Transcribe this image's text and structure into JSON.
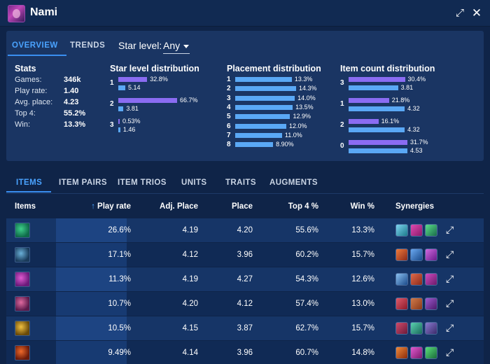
{
  "header": {
    "title": "Nami",
    "expand_icon": "expand-icon",
    "close_icon": "close-icon"
  },
  "tabs": {
    "overview": "OVERVIEW",
    "trends": "TRENDS"
  },
  "star_filter": {
    "label": "Star level:",
    "value": "Any"
  },
  "stats": {
    "title": "Stats",
    "rows": [
      {
        "label": "Games:",
        "value": "346k"
      },
      {
        "label": "Play rate:",
        "value": "1.40"
      },
      {
        "label": "Avg. place:",
        "value": "4.23"
      },
      {
        "label": "Top 4:",
        "value": "55.2%"
      },
      {
        "label": "Win:",
        "value": "13.3%"
      }
    ]
  },
  "star_dist": {
    "title": "Star level distribution",
    "rows": [
      {
        "label": "1",
        "purple": 32.8,
        "purple_text": "32.8%",
        "blue": 5.14,
        "blue_text": "5.14"
      },
      {
        "label": "2",
        "purple": 66.7,
        "purple_text": "66.7%",
        "blue": 3.81,
        "blue_text": "3.81"
      },
      {
        "label": "3",
        "purple": 0.53,
        "purple_text": "0.53%",
        "blue": 1.46,
        "blue_text": "1.46"
      }
    ]
  },
  "placement_dist": {
    "title": "Placement distribution",
    "rows": [
      {
        "label": "1",
        "value": 13.3,
        "text": "13.3%"
      },
      {
        "label": "2",
        "value": 14.3,
        "text": "14.3%"
      },
      {
        "label": "3",
        "value": 14.0,
        "text": "14.0%"
      },
      {
        "label": "4",
        "value": 13.5,
        "text": "13.5%"
      },
      {
        "label": "5",
        "value": 12.9,
        "text": "12.9%"
      },
      {
        "label": "6",
        "value": 12.0,
        "text": "12.0%"
      },
      {
        "label": "7",
        "value": 11.0,
        "text": "11.0%"
      },
      {
        "label": "8",
        "value": 8.9,
        "text": "8.90%"
      }
    ]
  },
  "item_count_dist": {
    "title": "Item count distribution",
    "rows": [
      {
        "label": "3",
        "purple": 30.4,
        "purple_text": "30.4%",
        "blue": 3.81,
        "blue_text": "3.81"
      },
      {
        "label": "1",
        "purple": 21.8,
        "purple_text": "21.8%",
        "blue": 4.32,
        "blue_text": "4.32"
      },
      {
        "label": "2",
        "purple": 16.1,
        "purple_text": "16.1%",
        "blue": 4.32,
        "blue_text": "4.32"
      },
      {
        "label": "0",
        "purple": 31.7,
        "purple_text": "31.7%",
        "blue": 4.53,
        "blue_text": "4.53"
      }
    ]
  },
  "subtabs": [
    "ITEMS",
    "ITEM PAIRS",
    "ITEM TRIOS",
    "UNITS",
    "TRAITS",
    "AUGMENTS"
  ],
  "table": {
    "columns": {
      "items": "Items",
      "play_rate": "Play rate",
      "adj_place": "Adj. Place",
      "place": "Place",
      "top4": "Top 4 %",
      "win": "Win %",
      "synergies": "Synergies"
    },
    "rows": [
      {
        "item_icon": "green-blade-item-icon",
        "item_colors": [
          "#0f6a4a",
          "#3ed08a"
        ],
        "play_rate": "26.6%",
        "adj_place": "4.19",
        "place": "4.20",
        "top4": "55.6%",
        "win": "13.3%",
        "synergies": [
          [
            "#1a7a8a",
            "#7fd4f0"
          ],
          [
            "#8a1a6a",
            "#e04ab0"
          ],
          [
            "#1a6a4a",
            "#5ae08a"
          ]
        ]
      },
      {
        "item_icon": "blue-sword-item-icon",
        "item_colors": [
          "#1a3a5a",
          "#6ab0d8"
        ],
        "play_rate": "17.1%",
        "adj_place": "4.12",
        "place": "3.96",
        "top4": "60.2%",
        "win": "15.7%",
        "synergies": [
          [
            "#8a2a1a",
            "#f07a3a"
          ],
          [
            "#1a4a8a",
            "#6aa8f0"
          ],
          [
            "#6a1a8a",
            "#d06ae0"
          ]
        ]
      },
      {
        "item_icon": "violet-gauntlet-item-icon",
        "item_colors": [
          "#6a1a7a",
          "#e05ad0"
        ],
        "play_rate": "11.3%",
        "adj_place": "4.19",
        "place": "4.27",
        "top4": "54.3%",
        "win": "12.6%",
        "synergies": [
          [
            "#1a4a8a",
            "#8ac0f0"
          ],
          [
            "#8a2a1a",
            "#e06a4a"
          ],
          [
            "#6a1a6a",
            "#d04ac0"
          ]
        ]
      },
      {
        "item_icon": "pink-spear-item-icon",
        "item_colors": [
          "#5a1a4a",
          "#e06aa0"
        ],
        "play_rate": "10.7%",
        "adj_place": "4.20",
        "place": "4.12",
        "top4": "57.4%",
        "win": "13.0%",
        "synergies": [
          [
            "#8a1a2a",
            "#e05a6a"
          ],
          [
            "#8a3a1a",
            "#d07a4a"
          ],
          [
            "#4a1a6a",
            "#a05ad0"
          ]
        ]
      },
      {
        "item_icon": "gold-crossed-blades-item-icon",
        "item_colors": [
          "#6a4a0a",
          "#f0c040"
        ],
        "play_rate": "10.5%",
        "adj_place": "4.15",
        "place": "3.87",
        "top4": "62.7%",
        "win": "15.7%",
        "synergies": [
          [
            "#6a1a3a",
            "#d04a6a"
          ],
          [
            "#1a6a5a",
            "#5ad0b0"
          ],
          [
            "#3a2a6a",
            "#8a7ad0"
          ]
        ]
      },
      {
        "item_icon": "fire-orb-item-icon",
        "item_colors": [
          "#6a1a0a",
          "#f06a2a"
        ],
        "play_rate": "9.49%",
        "adj_place": "4.14",
        "place": "3.96",
        "top4": "60.7%",
        "win": "14.8%",
        "synergies": [
          [
            "#8a2a0a",
            "#f08a3a"
          ],
          [
            "#7a1a6a",
            "#e05ad0"
          ],
          [
            "#1a6a3a",
            "#5ae07a"
          ]
        ]
      }
    ]
  },
  "colors": {
    "accent": "#3a8ef0",
    "bar_purple": "#8a6cf2",
    "bar_blue": "#5aa8f5"
  }
}
